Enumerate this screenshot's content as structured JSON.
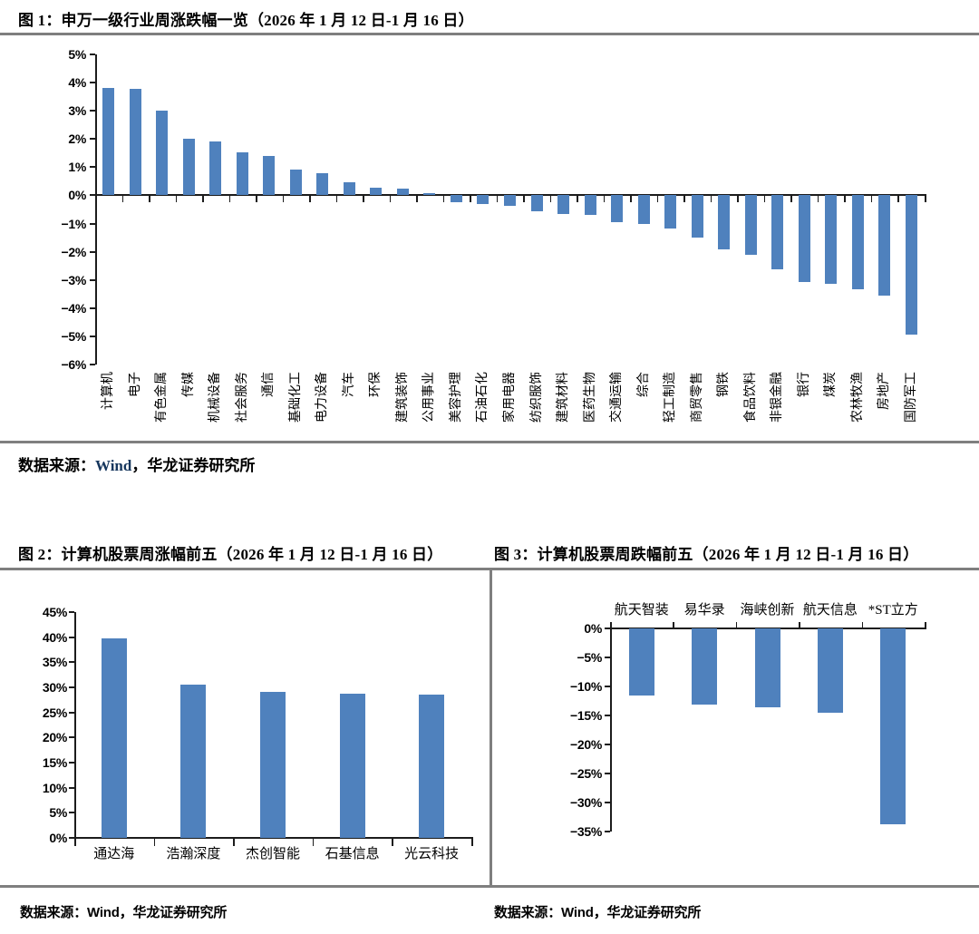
{
  "colors": {
    "bar_blue": "#4F81BD",
    "axis_black": "#1c1c1c",
    "rule_gray": "#7f7f7f",
    "wind_navy": "#17375E"
  },
  "sources": {
    "fig1": {
      "prefix": "数据来源：",
      "wind": "Wind",
      "rest": "，华龙证券研究所"
    },
    "fig2": {
      "prefix": "数据来源：",
      "wind": "Wind",
      "rest": "，华龙证券研究所"
    },
    "fig3": {
      "prefix": "数据来源：",
      "wind": "Wind",
      "rest": "，华龙证券研究所"
    }
  },
  "chart_data": [
    {
      "id": "fig1",
      "type": "bar",
      "title": "图 1：申万一级行业周涨跌幅一览（2026 年 1 月 12 日-1 月 16 日）",
      "categories": [
        "计算机",
        "电子",
        "有色金属",
        "传媒",
        "机械设备",
        "社会服务",
        "通信",
        "基础化工",
        "电力设备",
        "汽车",
        "环保",
        "建筑装饰",
        "公用事业",
        "美容护理",
        "石油石化",
        "家用电器",
        "纺织服饰",
        "建筑材料",
        "医药生物",
        "交通运输",
        "综合",
        "轻工制造",
        "商贸零售",
        "钢铁",
        "食品饮料",
        "非银金融",
        "银行",
        "煤炭",
        "农林牧渔",
        "房地产",
        "国防军工"
      ],
      "values": [
        3.82,
        3.78,
        3.02,
        2.02,
        1.9,
        1.52,
        1.4,
        0.9,
        0.78,
        0.47,
        0.26,
        0.24,
        0.09,
        -0.23,
        -0.3,
        -0.38,
        -0.57,
        -0.66,
        -0.68,
        -0.95,
        -1.03,
        -1.17,
        -1.5,
        -1.93,
        -2.11,
        -2.63,
        -3.06,
        -3.14,
        -3.32,
        -3.55,
        -4.95
      ],
      "unit": "%",
      "ylim": [
        -6,
        5
      ],
      "ytick_step": 1,
      "yticks": [
        "5%",
        "4%",
        "3%",
        "2%",
        "1%",
        "0%",
        "−1%",
        "−2%",
        "−3%",
        "−4%",
        "−5%",
        "−6%"
      ],
      "bar_color": "#4F81BD",
      "grid": false,
      "legend": "none",
      "xlabel_rotation": -90,
      "source": "数据来源：Wind，华龙证券研究所"
    },
    {
      "id": "fig2",
      "type": "bar",
      "title": "图 2：计算机股票周涨幅前五（2026 年 1 月 12 日-1 月 16 日）",
      "categories": [
        "通达海",
        "浩瀚深度",
        "杰创智能",
        "石基信息",
        "光云科技"
      ],
      "values": [
        39.8,
        30.6,
        29.1,
        28.8,
        28.5
      ],
      "unit": "%",
      "ylim": [
        0,
        45
      ],
      "ytick_step": 5,
      "yticks": [
        "45%",
        "40%",
        "35%",
        "30%",
        "25%",
        "20%",
        "15%",
        "10%",
        "5%",
        "0%"
      ],
      "bar_color": "#4F81BD",
      "grid": false,
      "legend": "none",
      "xlabel_rotation": 0,
      "source": "数据来源：Wind，华龙证券研究所"
    },
    {
      "id": "fig3",
      "type": "bar",
      "title": "图 3：计算机股票周跌幅前五（2026 年 1 月 12 日-1 月 16 日）",
      "categories": [
        "航天智装",
        "易华录",
        "海峡创新",
        "航天信息",
        "*ST立方"
      ],
      "values": [
        -11.6,
        -13.1,
        -13.6,
        -14.5,
        -33.7
      ],
      "unit": "%",
      "ylim": [
        -35,
        0
      ],
      "ytick_step": 5,
      "yticks": [
        "0%",
        "−5%",
        "−10%",
        "−15%",
        "−20%",
        "−25%",
        "−30%",
        "−35%"
      ],
      "bar_color": "#4F81BD",
      "grid": false,
      "legend": "none",
      "xlabel_rotation": 0,
      "category_label_position": "top",
      "source": "数据来源：Wind，华龙证券研究所"
    }
  ]
}
